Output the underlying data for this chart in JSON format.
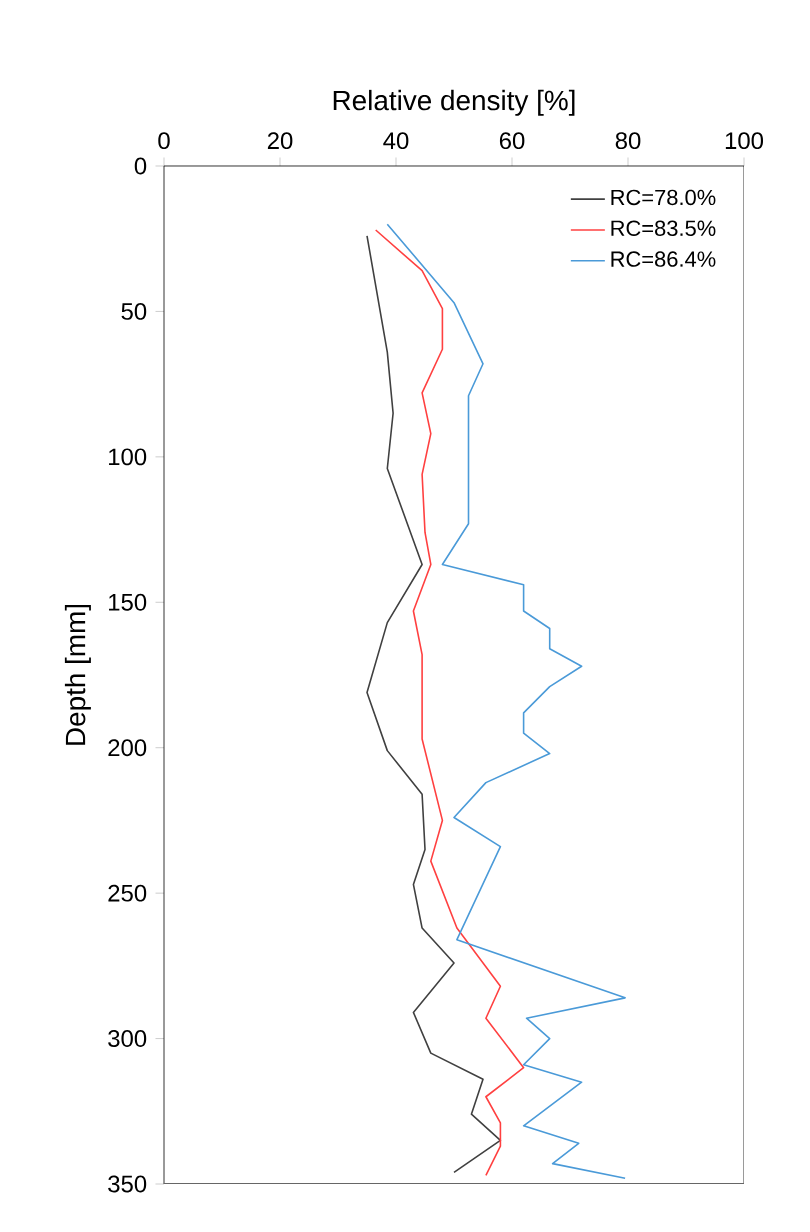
{
  "chart_data": {
    "type": "line",
    "xlabel": "Relative density [%]",
    "ylabel": "Depth [mm]",
    "xlim": [
      0,
      100
    ],
    "xticks": [
      0,
      20,
      40,
      60,
      80,
      100
    ],
    "ylim": [
      350,
      0
    ],
    "yticks": [
      0,
      50,
      100,
      150,
      200,
      250,
      300,
      350
    ],
    "grid": false,
    "legend": "top right",
    "marker": "none",
    "line_style": "solid",
    "series": [
      {
        "name": "RC=78.0%",
        "color": "#404040",
        "x": [
          35,
          38.5,
          39.5,
          38.5,
          44.5,
          38.5,
          35,
          38.5,
          44.5,
          45,
          43,
          44.5,
          50,
          43,
          46,
          55,
          53,
          58,
          50
        ],
        "values": [
          24,
          64,
          85,
          104,
          137,
          157,
          181,
          201,
          216,
          235,
          247,
          262,
          274,
          291,
          305,
          314,
          326,
          335,
          346
        ]
      },
      {
        "name": "RC=83.5%",
        "color": "#ff4040",
        "x": [
          36.5,
          44.5,
          48,
          48,
          44.5,
          46,
          44.5,
          45,
          46,
          43,
          44.5,
          44.5,
          48,
          46,
          50.5,
          58,
          55.5,
          62,
          55.5,
          58,
          58,
          55.5
        ],
        "values": [
          22,
          36,
          49,
          63,
          78,
          92,
          106,
          126,
          137,
          153,
          168,
          197,
          225,
          239,
          262,
          282,
          293,
          310,
          320,
          329,
          337,
          347
        ]
      },
      {
        "name": "RC=86.4%",
        "color": "#4a9ad8",
        "x": [
          38.5,
          50,
          55,
          52.5,
          52.5,
          48,
          62,
          62,
          66.5,
          66.5,
          72,
          66.5,
          62,
          62,
          66.5,
          55.5,
          50,
          58,
          50.5,
          79.5,
          62.5,
          66.5,
          62,
          72,
          62,
          71.5,
          67,
          79.5
        ],
        "values": [
          20,
          47,
          68,
          79,
          123,
          137,
          144,
          153,
          159,
          166,
          172,
          179,
          188,
          195,
          202,
          212,
          224,
          234,
          266,
          286,
          293,
          300,
          309,
          315,
          330,
          336,
          343,
          348
        ]
      }
    ]
  }
}
